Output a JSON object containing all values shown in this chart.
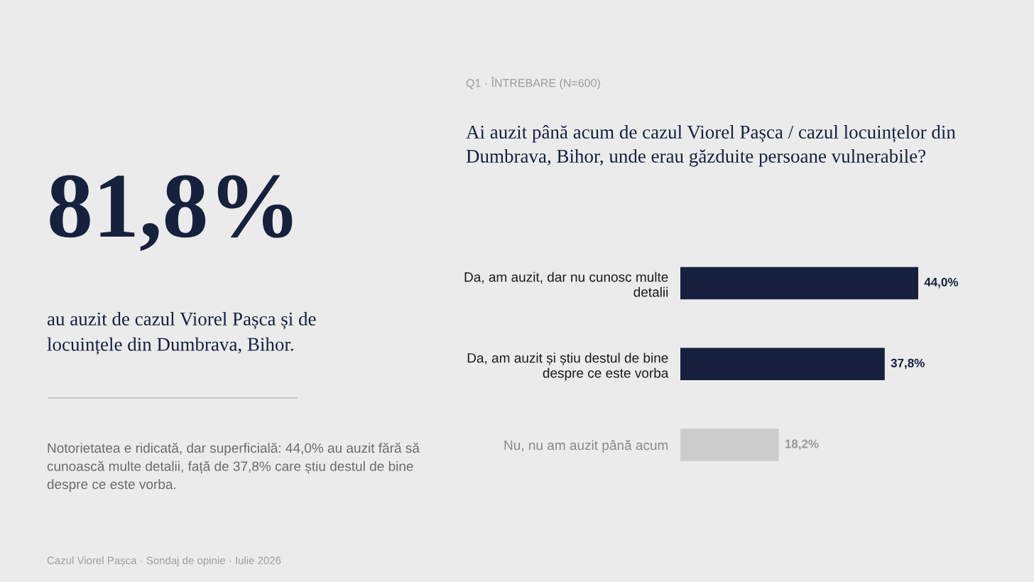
{
  "chart_data": {
    "type": "bar",
    "orientation": "horizontal",
    "subtitle": "Q1 · ÎNTREBARE (N=600)",
    "title": "Ai auzit până acum de cazul Viorel Pașca / cazul locuințelor din\nDumbrava, Bihor, unde erau găzduite persoane vulnerabile?",
    "categories": [
      "Da, am auzit, dar nu cunosc multe\ndetalii",
      "Da, am auzit și știu destul de bine\ndespre ce este vorba",
      "Nu, nu am auzit până acum"
    ],
    "values": [
      44.0,
      37.8,
      18.2
    ],
    "colors": [
      "#16213e",
      "#16213e",
      "#cccccc"
    ],
    "value_labels": [
      "44,0%",
      "37,8%",
      "18,2%"
    ],
    "tick_labels": "y",
    "annotations": [
      "81,8%",
      "au auzit de cazul Viorel Pașca și de\nlocuințele din Dumbrava, Bihor.",
      "Notorietatea e ridicată, dar superficială: 44,0% au auzit fără să\ncunoască multe detalii, față de 37,8% care știu destul de bine\ndespre ce este vorba.",
      "Cazul Viorel Pașca · Sondaj de opinie · Iulie 2026"
    ]
  }
}
